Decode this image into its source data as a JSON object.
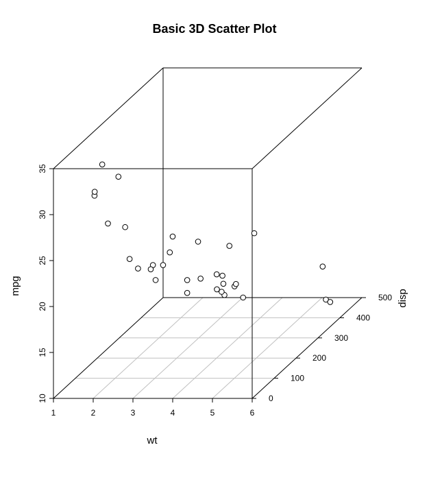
{
  "chart_data": {
    "type": "scatter",
    "title": "Basic 3D Scatter Plot",
    "xlabel": "wt",
    "ylabel": "disp",
    "zlabel": "mpg",
    "xlim": [
      1,
      6
    ],
    "ylim": [
      0,
      500
    ],
    "zlim": [
      10,
      35
    ],
    "x_ticks": [
      "1",
      "2",
      "3",
      "4",
      "5",
      "6"
    ],
    "y_ticks": [
      "0",
      "100",
      "200",
      "300",
      "400",
      "500"
    ],
    "z_ticks": [
      "10",
      "15",
      "20",
      "25",
      "30",
      "35"
    ],
    "grid": true,
    "points": [
      {
        "x": 2.62,
        "y": 160,
        "z": 21.0
      },
      {
        "x": 2.875,
        "y": 160,
        "z": 21.0
      },
      {
        "x": 2.32,
        "y": 108,
        "z": 22.8
      },
      {
        "x": 3.215,
        "y": 258,
        "z": 21.4
      },
      {
        "x": 3.44,
        "y": 360,
        "z": 18.7
      },
      {
        "x": 3.46,
        "y": 225,
        "z": 18.1
      },
      {
        "x": 3.57,
        "y": 360,
        "z": 14.3
      },
      {
        "x": 3.19,
        "y": 146.7,
        "z": 24.4
      },
      {
        "x": 3.15,
        "y": 140.8,
        "z": 22.8
      },
      {
        "x": 3.44,
        "y": 167.6,
        "z": 19.2
      },
      {
        "x": 3.44,
        "y": 167.6,
        "z": 17.8
      },
      {
        "x": 4.07,
        "y": 275.8,
        "z": 16.4
      },
      {
        "x": 3.73,
        "y": 275.8,
        "z": 17.3
      },
      {
        "x": 3.78,
        "y": 275.8,
        "z": 15.2
      },
      {
        "x": 5.25,
        "y": 472,
        "z": 10.4
      },
      {
        "x": 5.424,
        "y": 460,
        "z": 10.4
      },
      {
        "x": 5.345,
        "y": 440,
        "z": 14.7
      },
      {
        "x": 2.2,
        "y": 78.7,
        "z": 32.4
      },
      {
        "x": 1.615,
        "y": 75.7,
        "z": 30.4
      },
      {
        "x": 1.835,
        "y": 71.1,
        "z": 33.9
      },
      {
        "x": 2.465,
        "y": 120.1,
        "z": 21.5
      },
      {
        "x": 3.52,
        "y": 318,
        "z": 15.5
      },
      {
        "x": 3.435,
        "y": 304,
        "z": 15.2
      },
      {
        "x": 3.84,
        "y": 350,
        "z": 13.3
      },
      {
        "x": 3.845,
        "y": 400,
        "z": 19.2
      },
      {
        "x": 1.935,
        "y": 79,
        "z": 27.3
      },
      {
        "x": 2.14,
        "y": 120.3,
        "z": 26.0
      },
      {
        "x": 1.513,
        "y": 95.1,
        "z": 30.4
      },
      {
        "x": 3.17,
        "y": 351,
        "z": 15.8
      },
      {
        "x": 2.77,
        "y": 145,
        "z": 19.7
      },
      {
        "x": 3.57,
        "y": 301,
        "z": 15.0
      },
      {
        "x": 2.78,
        "y": 121,
        "z": 21.4
      }
    ]
  }
}
